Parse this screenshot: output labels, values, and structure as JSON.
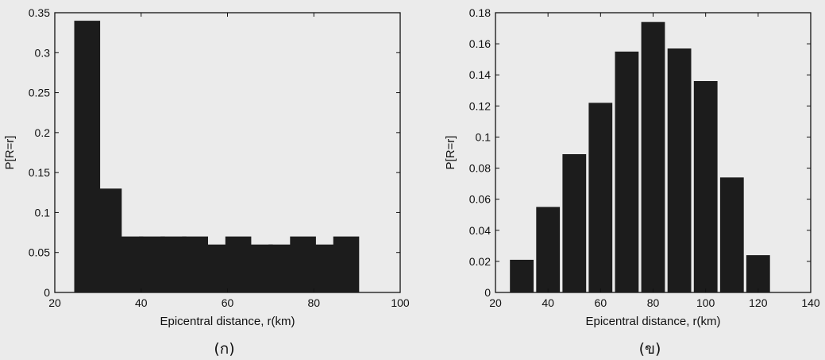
{
  "chart_data": [
    {
      "type": "bar",
      "xlabel": "Epicentral distance, r(km)",
      "ylabel": "P[R=r]",
      "caption": "(ก)",
      "xlim": [
        20,
        100
      ],
      "ylim": [
        0,
        0.35
      ],
      "xticks": [
        20,
        40,
        60,
        80,
        100
      ],
      "yticks": [
        0,
        0.05,
        0.1,
        0.15,
        0.2,
        0.25,
        0.3,
        0.35
      ],
      "xtick_labels": [
        "20",
        "40",
        "60",
        "80",
        "100"
      ],
      "ytick_labels": [
        "0",
        "0.05",
        "0.1",
        "0.15",
        "0.2",
        "0.25",
        "0.3",
        "0.35"
      ],
      "bar_width": 6,
      "bar_color": "#1c1c1c",
      "x": [
        27.5,
        32.5,
        37.5,
        42.5,
        47.5,
        52.5,
        57.5,
        62.5,
        67.5,
        72.5,
        77.5,
        82.5,
        87.5
      ],
      "values": [
        0.34,
        0.13,
        0.07,
        0.07,
        0.07,
        0.07,
        0.06,
        0.07,
        0.06,
        0.06,
        0.07,
        0.06,
        0.07
      ]
    },
    {
      "type": "bar",
      "xlabel": "Epicentral distance, r(km)",
      "ylabel": "P[R=r]",
      "caption": "(ข)",
      "xlim": [
        20,
        140
      ],
      "ylim": [
        0,
        0.18
      ],
      "xticks": [
        20,
        40,
        60,
        80,
        100,
        120,
        140
      ],
      "yticks": [
        0,
        0.02,
        0.04,
        0.06,
        0.08,
        0.1,
        0.12,
        0.14,
        0.16,
        0.18
      ],
      "xtick_labels": [
        "20",
        "40",
        "60",
        "80",
        "100",
        "120",
        "140"
      ],
      "ytick_labels": [
        "0",
        "0.02",
        "0.04",
        "0.06",
        "0.08",
        "0.1",
        "0.12",
        "0.14",
        "0.16",
        "0.18"
      ],
      "bar_width": 9,
      "bar_color": "#1c1c1c",
      "x": [
        30,
        40,
        50,
        60,
        70,
        80,
        90,
        100,
        110,
        120
      ],
      "values": [
        0.021,
        0.055,
        0.089,
        0.122,
        0.155,
        0.174,
        0.157,
        0.136,
        0.074,
        0.024
      ]
    }
  ]
}
